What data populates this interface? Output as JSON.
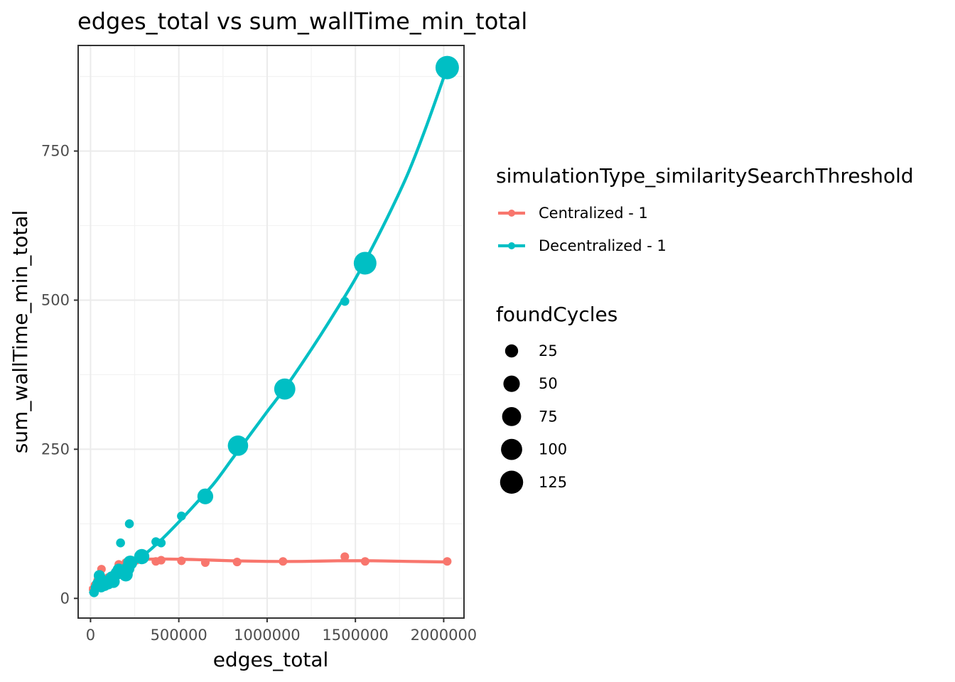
{
  "chart_data": {
    "type": "scatter",
    "title": "edges_total  vs  sum_wallTime_min_total",
    "xlabel": "edges_total",
    "ylabel": "sum_wallTime_min_total",
    "xlim": [
      -70000,
      2115000
    ],
    "ylim": [
      -33,
      927
    ],
    "x_ticks": [
      0,
      500000,
      1000000,
      1500000,
      2000000
    ],
    "x_tick_labels": [
      "0",
      "500000",
      "1000000",
      "1500000",
      "2000000"
    ],
    "x_minor_ticks": [
      250000,
      750000,
      1250000,
      1750000
    ],
    "y_ticks": [
      0,
      250,
      500,
      750
    ],
    "y_tick_labels": [
      "0",
      "250",
      "500",
      "750"
    ],
    "y_minor_ticks": [
      125,
      375,
      625,
      875
    ],
    "grid": true,
    "legend_position": "right",
    "color_legend_title": "simulationType_similaritySearchThreshold",
    "size_legend_title": "foundCycles",
    "size_legend": [
      {
        "label": "25",
        "value": 25
      },
      {
        "label": "50",
        "value": 50
      },
      {
        "label": "75",
        "value": 75
      },
      {
        "label": "100",
        "value": 100
      },
      {
        "label": "125",
        "value": 125
      }
    ],
    "series": [
      {
        "name": "Centralized - 1",
        "color": "#F8766D",
        "points": [
          {
            "x": 15000,
            "y": 15,
            "size": 5
          },
          {
            "x": 25000,
            "y": 22,
            "size": 5
          },
          {
            "x": 40000,
            "y": 30,
            "size": 5
          },
          {
            "x": 55000,
            "y": 40,
            "size": 5
          },
          {
            "x": 62000,
            "y": 49,
            "size": 5
          },
          {
            "x": 80000,
            "y": 28,
            "size": 5
          },
          {
            "x": 100000,
            "y": 35,
            "size": 5
          },
          {
            "x": 120000,
            "y": 38,
            "size": 5
          },
          {
            "x": 140000,
            "y": 44,
            "size": 5
          },
          {
            "x": 160000,
            "y": 57,
            "size": 5
          },
          {
            "x": 180000,
            "y": 52,
            "size": 5
          },
          {
            "x": 200000,
            "y": 60,
            "size": 5
          },
          {
            "x": 220000,
            "y": 62,
            "size": 5
          },
          {
            "x": 260000,
            "y": 64,
            "size": 5
          },
          {
            "x": 300000,
            "y": 67,
            "size": 5
          },
          {
            "x": 370000,
            "y": 62,
            "size": 5
          },
          {
            "x": 400000,
            "y": 64,
            "size": 5
          },
          {
            "x": 515000,
            "y": 63,
            "size": 5
          },
          {
            "x": 650000,
            "y": 60,
            "size": 5
          },
          {
            "x": 830000,
            "y": 61,
            "size": 5
          },
          {
            "x": 1090000,
            "y": 62,
            "size": 5
          },
          {
            "x": 1440000,
            "y": 70,
            "size": 5
          },
          {
            "x": 1555000,
            "y": 62,
            "size": 5
          },
          {
            "x": 2020000,
            "y": 62,
            "size": 5
          }
        ],
        "trend": [
          {
            "x": 0,
            "y": 18
          },
          {
            "x": 100000,
            "y": 35
          },
          {
            "x": 200000,
            "y": 58
          },
          {
            "x": 300000,
            "y": 65
          },
          {
            "x": 400000,
            "y": 66
          },
          {
            "x": 600000,
            "y": 65
          },
          {
            "x": 800000,
            "y": 63
          },
          {
            "x": 1000000,
            "y": 62
          },
          {
            "x": 1200000,
            "y": 62
          },
          {
            "x": 1400000,
            "y": 63
          },
          {
            "x": 1600000,
            "y": 63
          },
          {
            "x": 1800000,
            "y": 62
          },
          {
            "x": 2020000,
            "y": 61
          }
        ]
      },
      {
        "name": "Decentralized - 1",
        "color": "#00BFC4",
        "points": [
          {
            "x": 20000,
            "y": 10,
            "size": 8
          },
          {
            "x": 30000,
            "y": 18,
            "size": 10
          },
          {
            "x": 40000,
            "y": 25,
            "size": 12
          },
          {
            "x": 50000,
            "y": 38,
            "size": 15
          },
          {
            "x": 60000,
            "y": 20,
            "size": 18
          },
          {
            "x": 70000,
            "y": 30,
            "size": 14
          },
          {
            "x": 80000,
            "y": 22,
            "size": 16
          },
          {
            "x": 100000,
            "y": 25,
            "size": 18
          },
          {
            "x": 120000,
            "y": 35,
            "size": 20
          },
          {
            "x": 130000,
            "y": 28,
            "size": 22
          },
          {
            "x": 150000,
            "y": 42,
            "size": 24
          },
          {
            "x": 160000,
            "y": 48,
            "size": 20
          },
          {
            "x": 170000,
            "y": 93,
            "size": 6
          },
          {
            "x": 200000,
            "y": 40,
            "size": 30
          },
          {
            "x": 210000,
            "y": 50,
            "size": 28
          },
          {
            "x": 220000,
            "y": 125,
            "size": 6
          },
          {
            "x": 225000,
            "y": 60,
            "size": 32
          },
          {
            "x": 290000,
            "y": 70,
            "size": 40
          },
          {
            "x": 370000,
            "y": 95,
            "size": 6
          },
          {
            "x": 400000,
            "y": 93,
            "size": 6
          },
          {
            "x": 515000,
            "y": 138,
            "size": 6
          },
          {
            "x": 650000,
            "y": 171,
            "size": 45
          },
          {
            "x": 835000,
            "y": 256,
            "size": 90
          },
          {
            "x": 1100000,
            "y": 351,
            "size": 100
          },
          {
            "x": 1440000,
            "y": 498,
            "size": 6
          },
          {
            "x": 1555000,
            "y": 562,
            "size": 120
          },
          {
            "x": 2020000,
            "y": 890,
            "size": 130
          }
        ],
        "trend": [
          {
            "x": 0,
            "y": 10
          },
          {
            "x": 100000,
            "y": 28
          },
          {
            "x": 200000,
            "y": 50
          },
          {
            "x": 300000,
            "y": 72
          },
          {
            "x": 400000,
            "y": 98
          },
          {
            "x": 500000,
            "y": 128
          },
          {
            "x": 600000,
            "y": 160
          },
          {
            "x": 700000,
            "y": 193
          },
          {
            "x": 800000,
            "y": 233
          },
          {
            "x": 900000,
            "y": 273
          },
          {
            "x": 1000000,
            "y": 313
          },
          {
            "x": 1100000,
            "y": 352
          },
          {
            "x": 1200000,
            "y": 395
          },
          {
            "x": 1300000,
            "y": 440
          },
          {
            "x": 1400000,
            "y": 487
          },
          {
            "x": 1500000,
            "y": 536
          },
          {
            "x": 1600000,
            "y": 591
          },
          {
            "x": 1700000,
            "y": 650
          },
          {
            "x": 1800000,
            "y": 714
          },
          {
            "x": 1900000,
            "y": 790
          },
          {
            "x": 2020000,
            "y": 890
          }
        ]
      }
    ]
  }
}
